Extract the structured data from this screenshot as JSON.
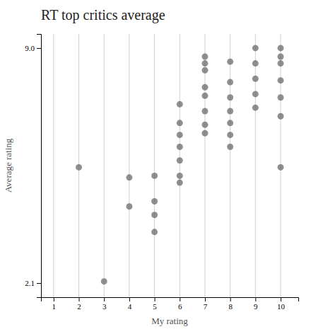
{
  "chart_data": {
    "type": "scatter",
    "title": "RT top critics average",
    "xlabel": "My rating",
    "ylabel": "Average rating",
    "x": [
      2,
      3,
      4,
      4,
      5,
      5,
      5,
      5,
      6,
      6,
      6,
      6,
      6,
      6,
      6,
      7,
      7,
      7,
      7,
      7,
      7,
      7,
      7,
      8,
      8,
      8,
      8,
      8,
      8,
      8,
      9,
      9,
      9,
      9,
      9,
      10,
      10,
      10,
      10,
      10,
      10,
      10
    ],
    "values": [
      5.5,
      2.15,
      5.2,
      4.35,
      5.25,
      4.5,
      4.1,
      3.6,
      7.35,
      6.8,
      6.45,
      6.1,
      5.7,
      5.25,
      5.05,
      8.75,
      8.55,
      8.35,
      7.85,
      7.6,
      7.15,
      6.75,
      6.5,
      8.6,
      8.0,
      7.55,
      7.15,
      6.8,
      6.45,
      6.1,
      9.0,
      8.55,
      8.1,
      7.65,
      7.25,
      9.0,
      8.75,
      8.55,
      8.05,
      7.55,
      7.0,
      5.5
    ],
    "color": "#555555",
    "xlim": [
      0.5,
      10.7
    ],
    "xticks": [
      1,
      2,
      3,
      4,
      5,
      6,
      7,
      8,
      9,
      10
    ],
    "ylim": [
      1.686,
      9.414
    ],
    "yticks": [
      2.1,
      {
        "value": 9.0,
        "label": "9.0"
      }
    ],
    "grid": "x"
  }
}
